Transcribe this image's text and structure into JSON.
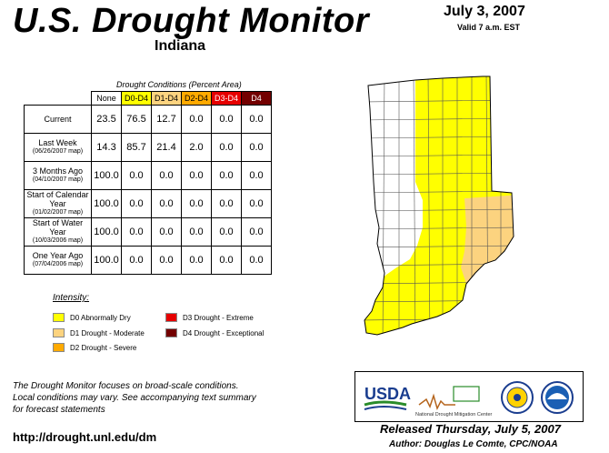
{
  "header": {
    "title": "U.S. Drought Monitor",
    "state": "Indiana",
    "date": "July 3, 2007",
    "valid": "Valid 7 a.m. EST"
  },
  "table": {
    "caption": "Drought Conditions (Percent Area)",
    "columns": [
      "None",
      "D0-D4",
      "D1-D4",
      "D2-D4",
      "D3-D4",
      "D4"
    ],
    "rows": [
      {
        "label": "Current",
        "sub": "",
        "values": [
          "23.5",
          "76.5",
          "12.7",
          "0.0",
          "0.0",
          "0.0"
        ]
      },
      {
        "label": "Last Week",
        "sub": "(06/26/2007 map)",
        "values": [
          "14.3",
          "85.7",
          "21.4",
          "2.0",
          "0.0",
          "0.0"
        ]
      },
      {
        "label": "3 Months Ago",
        "sub": "(04/10/2007 map)",
        "values": [
          "100.0",
          "0.0",
          "0.0",
          "0.0",
          "0.0",
          "0.0"
        ]
      },
      {
        "label": "Start of Calendar Year",
        "sub": "(01/02/2007 map)",
        "values": [
          "100.0",
          "0.0",
          "0.0",
          "0.0",
          "0.0",
          "0.0"
        ]
      },
      {
        "label": "Start of Water Year",
        "sub": "(10/03/2006 map)",
        "values": [
          "100.0",
          "0.0",
          "0.0",
          "0.0",
          "0.0",
          "0.0"
        ]
      },
      {
        "label": "One Year Ago",
        "sub": "(07/04/2006 map)",
        "values": [
          "100.0",
          "0.0",
          "0.0",
          "0.0",
          "0.0",
          "0.0"
        ]
      }
    ]
  },
  "legend": {
    "heading": "Intensity:",
    "items": [
      {
        "label": "D0 Abnormally Dry",
        "color": "#ffff00"
      },
      {
        "label": "D1 Drought - Moderate",
        "color": "#fcd37f"
      },
      {
        "label": "D2 Drought - Severe",
        "color": "#ffaa00"
      },
      {
        "label": "D3 Drought - Extreme",
        "color": "#e60000"
      },
      {
        "label": "D4 Drought - Exceptional",
        "color": "#730000"
      }
    ]
  },
  "footer": {
    "note_line1": "The Drought Monitor focuses on broad-scale conditions.",
    "note_line2": "Local conditions may vary. See accompanying text summary",
    "note_line3": "for forecast statements",
    "url": "http://drought.unl.edu/dm",
    "released": "Released Thursday, July 5, 2007",
    "author": "Author: Douglas Le Comte, CPC/NOAA"
  },
  "logos": {
    "usda": "USDA",
    "ndmc": "National Drought Mitigation Center"
  }
}
